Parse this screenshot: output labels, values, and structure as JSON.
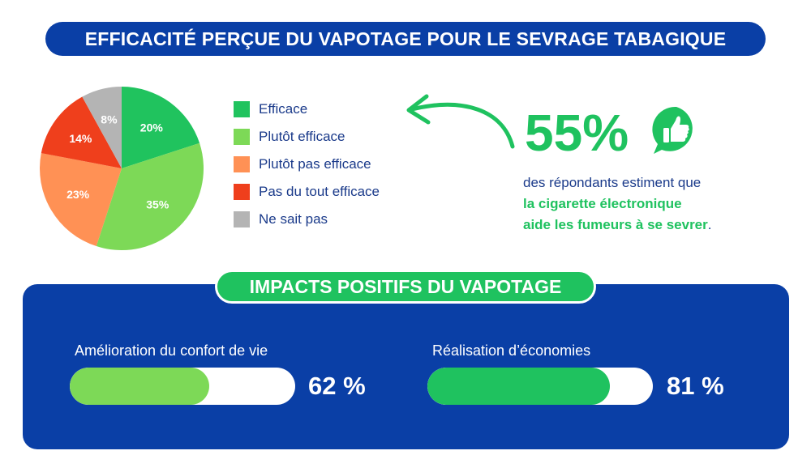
{
  "header": {
    "title": "EFFICACITÉ PERÇUE DU VAPOTAGE POUR LE SEVRAGE TABAGIQUE"
  },
  "chart_data": [
    {
      "type": "pie",
      "title": "EFFICACITÉ PERÇUE DU VAPOTAGE POUR LE SEVRAGE TABAGIQUE",
      "categories": [
        "Efficace",
        "Plutôt efficace",
        "Plutôt pas efficace",
        "Pas du tout efficace",
        "Ne sait pas"
      ],
      "values": [
        20,
        35,
        23,
        14,
        8
      ],
      "labels": [
        "20%",
        "35%",
        "23%",
        "14%",
        "8%"
      ],
      "colors": [
        "#20c35e",
        "#7dd957",
        "#ff9155",
        "#ef3f1c",
        "#b4b4b4"
      ],
      "legend_position": "right"
    },
    {
      "type": "bar",
      "title": "IMPACTS POSITIFS DU VAPOTAGE",
      "categories": [
        "Amélioration du confort de vie",
        "Réalisation d’économies"
      ],
      "values": [
        62,
        81
      ],
      "labels": [
        "62 %",
        "81 %"
      ],
      "colors": [
        "#7dd957",
        "#1fc25f"
      ],
      "ylim": [
        0,
        100
      ]
    }
  ],
  "highlight": {
    "value": "55%",
    "line1": "des répondants estiment que",
    "line2": "la cigarette électronique",
    "line3": "aide les fumeurs à se sevrer",
    "line3_end": ".",
    "icon": "thumbs-up-icon"
  },
  "impacts": {
    "title": "IMPACTS POSITIFS DU VAPOTAGE"
  },
  "colors": {
    "navy": "#0a3fa6",
    "green": "#1fc25f",
    "text": "#1a3a8a"
  }
}
